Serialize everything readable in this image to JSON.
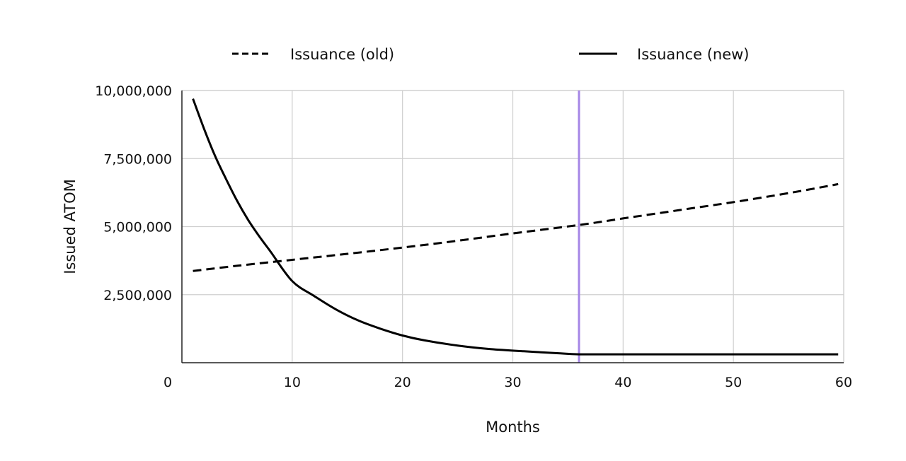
{
  "chart_data": {
    "type": "line",
    "title": "",
    "xlabel": "Months",
    "ylabel": "Issued ATOM",
    "xlim": [
      0,
      60
    ],
    "ylim": [
      0,
      10000000
    ],
    "x_ticks": [
      0,
      10,
      20,
      30,
      40,
      50,
      60
    ],
    "x_tick_labels": [
      "0",
      "10",
      "20",
      "30",
      "40",
      "50",
      "60"
    ],
    "y_ticks": [
      2500000,
      5000000,
      7500000,
      10000000
    ],
    "y_tick_labels": [
      "2,500,000",
      "5,000,000",
      "7,500,000",
      "10,000,000"
    ],
    "grid": true,
    "legend_position": "top",
    "series": [
      {
        "name": "Issuance (old)",
        "style": "dashed",
        "color": "#000000",
        "x": [
          1,
          5,
          10,
          15,
          20,
          25,
          30,
          36,
          40,
          45,
          50,
          55,
          59.5
        ],
        "y": [
          3370000,
          3560000,
          3780000,
          4000000,
          4230000,
          4480000,
          4750000,
          5060000,
          5300000,
          5600000,
          5900000,
          6230000,
          6560000
        ]
      },
      {
        "name": "Issuance (new)",
        "style": "solid",
        "color": "#000000",
        "x": [
          1,
          2,
          3,
          4,
          5,
          6,
          7,
          8,
          10,
          12,
          14,
          16,
          18,
          20,
          22,
          25,
          28,
          31,
          34,
          36,
          40,
          45,
          50,
          55,
          59.5
        ],
        "y": [
          9700000,
          8600000,
          7600000,
          6750000,
          5950000,
          5250000,
          4650000,
          4100000,
          3000000,
          2450000,
          1950000,
          1550000,
          1250000,
          1000000,
          820000,
          630000,
          500000,
          420000,
          350000,
          310000,
          310000,
          310000,
          310000,
          310000,
          310000
        ]
      }
    ],
    "reference_lines": [
      {
        "axis": "x",
        "value": 36,
        "color": "#a586e6"
      }
    ]
  }
}
